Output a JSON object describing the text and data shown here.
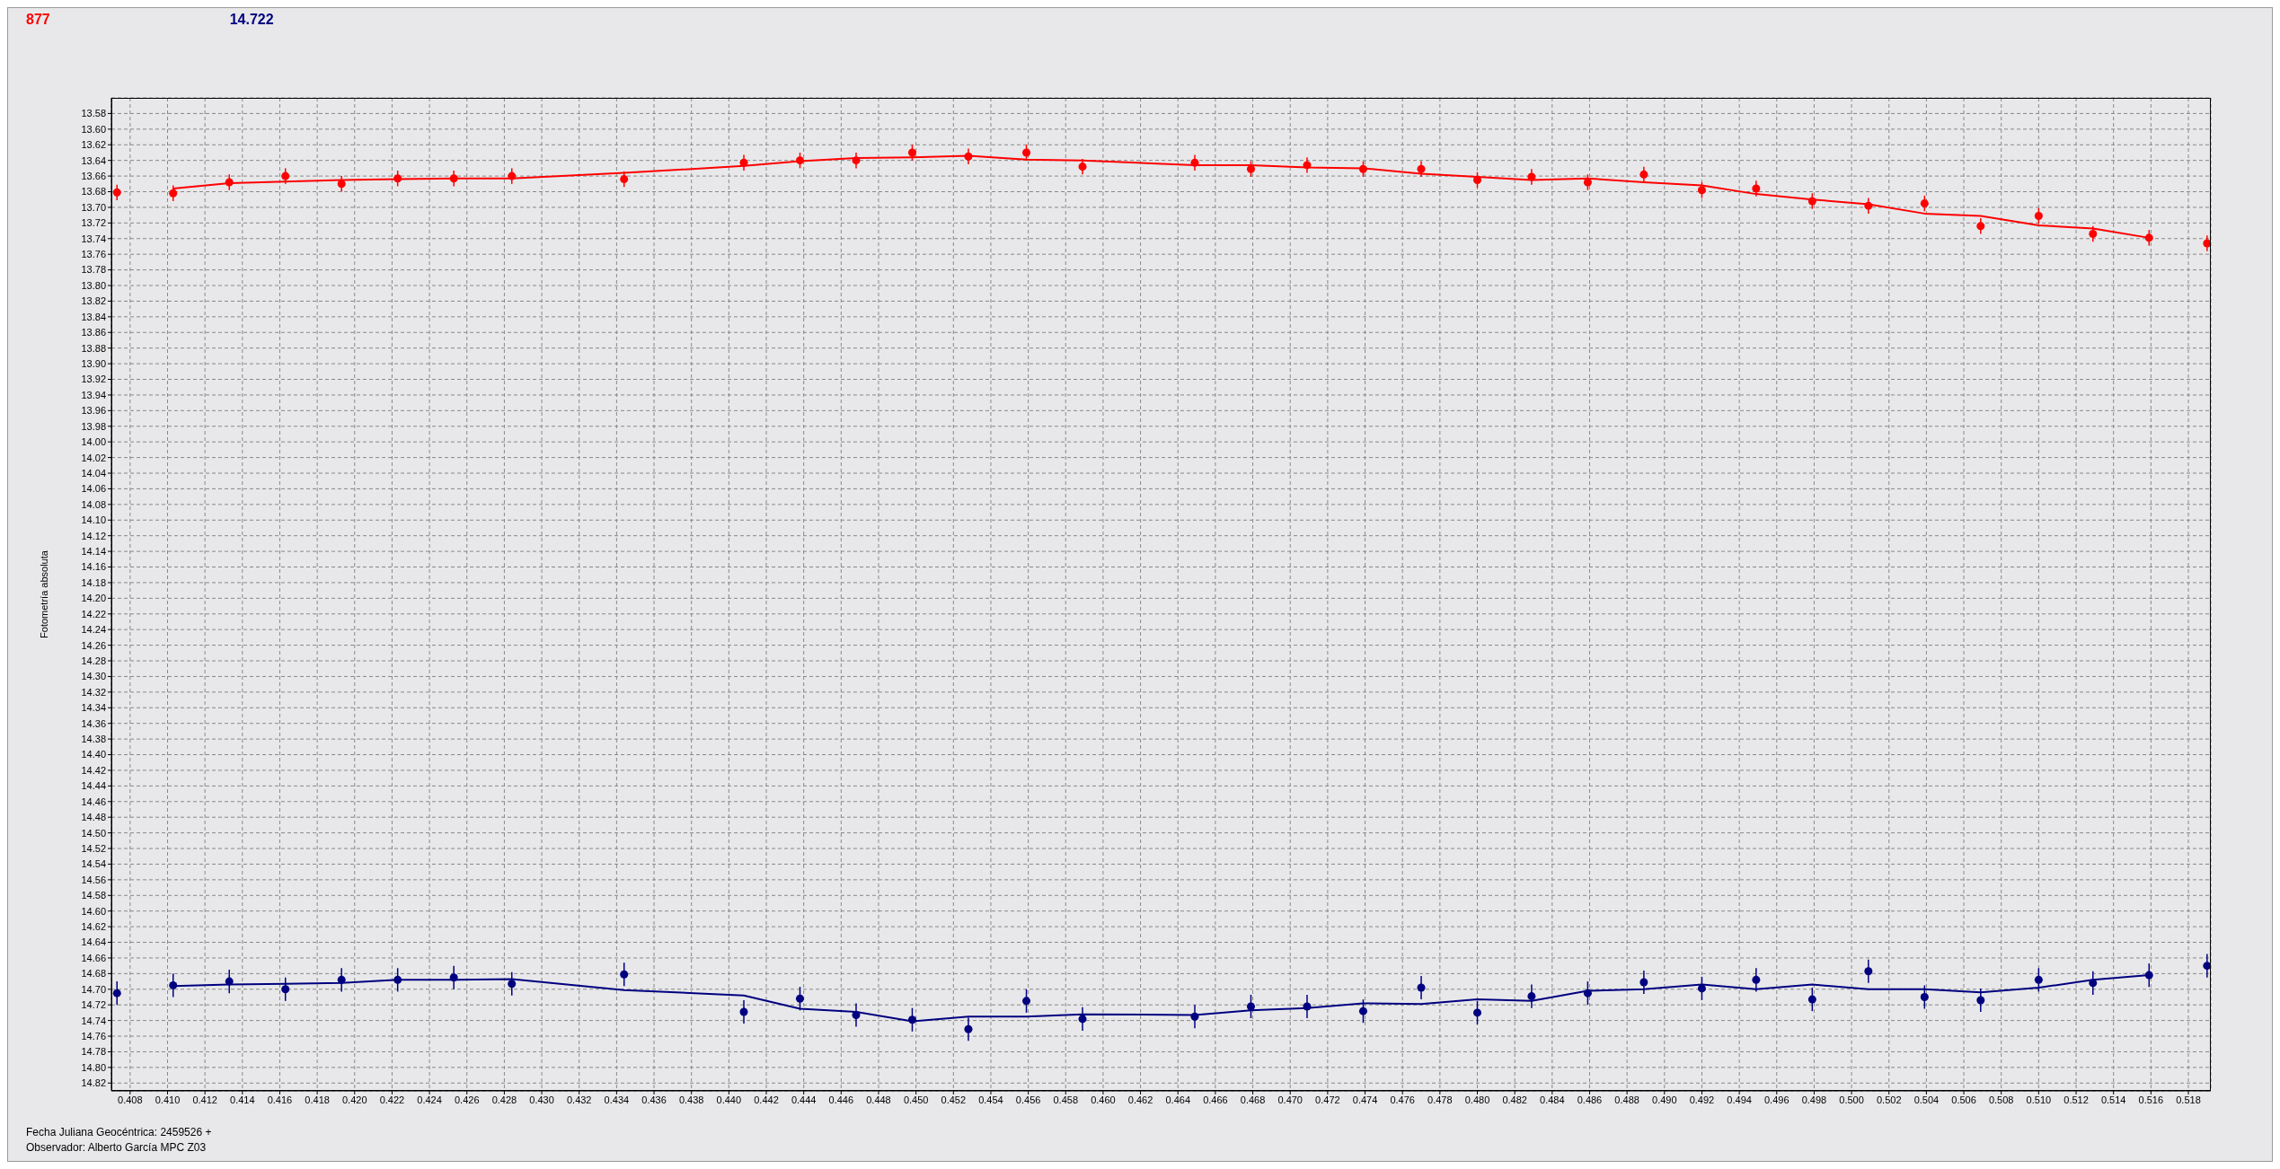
{
  "chart_data": {
    "type": "scatter",
    "ylabel": "Fotometría absoluta",
    "legend": "top left",
    "grid": true,
    "marker": "circle",
    "x": [
      0.4073,
      0.4103,
      0.4133,
      0.4163,
      0.4193,
      0.4223,
      0.4253,
      0.4284,
      0.4344,
      0.4408,
      0.4438,
      0.4468,
      0.4498,
      0.4528,
      0.4559,
      0.4589,
      0.4649,
      0.4679,
      0.4709,
      0.4739,
      0.477,
      0.48,
      0.4829,
      0.4859,
      0.4889,
      0.492,
      0.4949,
      0.4979,
      0.5009,
      0.5039,
      0.5069,
      0.51,
      0.5129,
      0.5159,
      0.519
    ],
    "series": [
      {
        "name": "877",
        "color": "#ff0000",
        "values": [
          13.681,
          13.682,
          13.668,
          13.66,
          13.67,
          13.663,
          13.663,
          13.66,
          13.664,
          13.643,
          13.64,
          13.64,
          13.63,
          13.635,
          13.63,
          13.648,
          13.643,
          13.651,
          13.646,
          13.651,
          13.651,
          13.665,
          13.661,
          13.668,
          13.658,
          13.678,
          13.676,
          13.692,
          13.698,
          13.695,
          13.724,
          13.711,
          13.734,
          13.739,
          13.746
        ],
        "errors": [
          0.01,
          0.01,
          0.01,
          0.01,
          0.01,
          0.01,
          0.01,
          0.01,
          0.01,
          0.01,
          0.01,
          0.01,
          0.01,
          0.01,
          0.01,
          0.01,
          0.01,
          0.01,
          0.01,
          0.01,
          0.01,
          0.01,
          0.01,
          0.01,
          0.01,
          0.01,
          0.01,
          0.01,
          0.01,
          0.01,
          0.01,
          0.01,
          0.01,
          0.01,
          0.01
        ]
      },
      {
        "type": "line",
        "color": "#ff0000",
        "line_style": "solid",
        "marker": "none",
        "x": [
          0.4103,
          0.4133,
          0.4163,
          0.4193,
          0.4223,
          0.4253,
          0.4284,
          0.4344,
          0.4408,
          0.4438,
          0.4468,
          0.4498,
          0.4528,
          0.4559,
          0.4589,
          0.4649,
          0.4679,
          0.4709,
          0.4739,
          0.477,
          0.48,
          0.4829,
          0.4859,
          0.4889,
          0.492,
          0.4949,
          0.4979,
          0.5009,
          0.5039,
          0.5069,
          0.51,
          0.5129,
          0.5159
        ],
        "values": [
          13.676,
          13.669,
          13.667,
          13.665,
          13.664,
          13.663,
          13.663,
          13.656,
          13.647,
          13.641,
          13.637,
          13.636,
          13.634,
          13.639,
          13.64,
          13.646,
          13.646,
          13.649,
          13.65,
          13.657,
          13.661,
          13.665,
          13.663,
          13.668,
          13.672,
          13.683,
          13.69,
          13.696,
          13.708,
          13.711,
          13.723,
          13.727,
          13.739
        ]
      },
      {
        "name": "14.722",
        "color": "#000080",
        "values": [
          14.705,
          14.695,
          14.69,
          14.7,
          14.688,
          14.688,
          14.685,
          14.693,
          14.681,
          14.729,
          14.712,
          14.733,
          14.739,
          14.751,
          14.715,
          14.738,
          14.735,
          14.722,
          14.722,
          14.728,
          14.698,
          14.73,
          14.709,
          14.705,
          14.691,
          14.699,
          14.688,
          14.713,
          14.677,
          14.71,
          14.714,
          14.688,
          14.692,
          14.682,
          14.67
        ],
        "errors": [
          0.015,
          0.015,
          0.015,
          0.015,
          0.015,
          0.015,
          0.015,
          0.015,
          0.015,
          0.015,
          0.015,
          0.015,
          0.015,
          0.015,
          0.015,
          0.015,
          0.015,
          0.015,
          0.015,
          0.015,
          0.015,
          0.015,
          0.015,
          0.015,
          0.015,
          0.015,
          0.015,
          0.015,
          0.015,
          0.015,
          0.015,
          0.015,
          0.015,
          0.015,
          0.015
        ]
      },
      {
        "type": "line",
        "color": "#000080",
        "line_style": "solid",
        "marker": "none",
        "x": [
          0.4103,
          0.4133,
          0.4163,
          0.4193,
          0.4223,
          0.4253,
          0.4284,
          0.4344,
          0.4408,
          0.4438,
          0.4468,
          0.4498,
          0.4528,
          0.4559,
          0.4589,
          0.4649,
          0.4679,
          0.4709,
          0.4739,
          0.477,
          0.48,
          0.4829,
          0.4859,
          0.4889,
          0.492,
          0.4949,
          0.4979,
          0.5009,
          0.5039,
          0.5069,
          0.51,
          0.5129,
          0.5159
        ],
        "values": [
          14.696,
          14.694,
          14.693,
          14.692,
          14.688,
          14.688,
          14.687,
          14.701,
          14.708,
          14.725,
          14.729,
          14.741,
          14.735,
          14.735,
          14.732,
          14.733,
          14.727,
          14.724,
          14.718,
          14.719,
          14.713,
          14.715,
          14.702,
          14.7,
          14.694,
          14.7,
          14.694,
          14.7,
          14.7,
          14.704,
          14.698,
          14.688,
          14.682
        ]
      }
    ],
    "xlim": [
      0.407,
      0.5192
    ],
    "xticks": [
      0.408,
      {
        "value": 0.41,
        "label": "0.410"
      },
      0.412,
      0.414,
      0.416,
      0.418,
      {
        "value": 0.42,
        "label": "0.420"
      },
      0.422,
      0.424,
      0.426,
      0.428,
      {
        "value": 0.43,
        "label": "0.430"
      },
      0.432,
      0.434,
      0.436,
      0.438,
      {
        "value": 0.44,
        "label": "0.440"
      },
      0.442,
      0.444,
      0.446,
      0.448,
      {
        "value": 0.45,
        "label": "0.450"
      },
      0.452,
      0.454,
      0.456,
      0.458,
      {
        "value": 0.46,
        "label": "0.460"
      },
      0.462,
      0.464,
      0.466,
      0.468,
      {
        "value": 0.47,
        "label": "0.470"
      },
      0.472,
      0.474,
      0.476,
      0.478,
      {
        "value": 0.48,
        "label": "0.480"
      },
      0.482,
      0.484,
      0.486,
      0.488,
      {
        "value": 0.49,
        "label": "0.490"
      },
      0.492,
      0.494,
      0.496,
      0.498,
      {
        "value": 0.5,
        "label": "0.500"
      },
      0.502,
      0.504,
      0.506,
      0.508,
      {
        "value": 0.51,
        "label": "0.510"
      },
      0.512,
      0.514,
      0.516,
      0.518
    ],
    "ylim": [
      14.83,
      13.56
    ],
    "yticks": [
      13.58,
      {
        "value": 13.6,
        "label": "13.60"
      },
      13.62,
      13.64,
      13.66,
      13.68,
      {
        "value": 13.7,
        "label": "13.70"
      },
      13.72,
      13.74,
      13.76,
      13.78,
      {
        "value": 13.8,
        "label": "13.80"
      },
      13.82,
      13.84,
      13.86,
      13.88,
      {
        "value": 13.9,
        "label": "13.90"
      },
      13.92,
      13.94,
      13.96,
      13.98,
      {
        "value": 14,
        "label": "14.00"
      },
      14.02,
      14.04,
      14.06,
      14.08,
      {
        "value": 14.1,
        "label": "14.10"
      },
      14.12,
      14.14,
      14.16,
      14.18,
      {
        "value": 14.2,
        "label": "14.20"
      },
      14.22,
      14.24,
      14.26,
      14.28,
      {
        "value": 14.3,
        "label": "14.30"
      },
      14.32,
      14.34,
      14.36,
      14.38,
      {
        "value": 14.4,
        "label": "14.40"
      },
      14.42,
      14.44,
      14.46,
      14.48,
      {
        "value": 14.5,
        "label": "14.50"
      },
      14.52,
      14.54,
      14.56,
      14.58,
      {
        "value": 14.6,
        "label": "14.60"
      },
      14.62,
      14.64,
      14.66,
      14.68,
      {
        "value": 14.7,
        "label": "14.70"
      },
      14.72,
      14.74,
      14.76,
      14.78,
      {
        "value": 14.8,
        "label": "14.80"
      },
      14.82
    ],
    "annotations": [
      "Fecha Juliana Geocéntrica: 2459526 +",
      "Observador: Alberto García MPC Z03"
    ]
  }
}
